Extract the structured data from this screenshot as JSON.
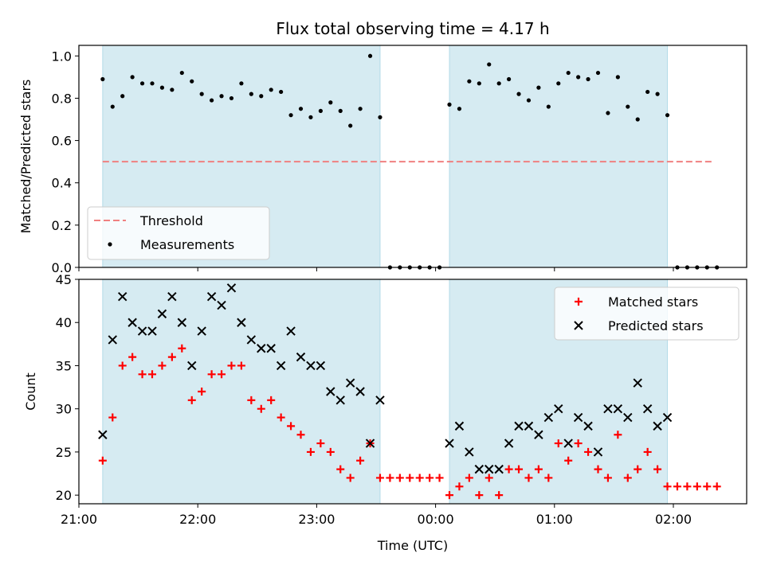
{
  "chart_data": {
    "type": "scatter",
    "title": "Flux total observing time = 4.17 h",
    "xlabel": "Time (UTC)",
    "x_ticks": [
      "21:00",
      "22:00",
      "23:00",
      "00:00",
      "01:00",
      "02:00"
    ],
    "x_range": [
      "21:00",
      "02:37"
    ],
    "shaded_intervals": [
      [
        "21:12",
        "23:32"
      ],
      [
        "00:07",
        "01:57"
      ]
    ],
    "shade_color": "#add8e6",
    "panels": [
      {
        "id": "ratio",
        "ylabel": "Matched/Predicted stars",
        "ylim": [
          0,
          1.05
        ],
        "y_ticks": [
          "0.0",
          "0.2",
          "0.4",
          "0.6",
          "0.8",
          "1.0"
        ],
        "legend_position": "lower-left",
        "threshold": {
          "name": "Threshold",
          "value": 0.5,
          "x_start": "21:12",
          "x_end": "02:20",
          "color": "#f08080"
        },
        "series": [
          {
            "name": "Measurements",
            "marker": "dot",
            "color": "#000000",
            "points": [
              [
                "21:12",
                0.89
              ],
              [
                "21:17",
                0.76
              ],
              [
                "21:22",
                0.81
              ],
              [
                "21:27",
                0.9
              ],
              [
                "21:32",
                0.87
              ],
              [
                "21:37",
                0.87
              ],
              [
                "21:42",
                0.85
              ],
              [
                "21:47",
                0.84
              ],
              [
                "21:52",
                0.92
              ],
              [
                "21:57",
                0.88
              ],
              [
                "22:02",
                0.82
              ],
              [
                "22:07",
                0.79
              ],
              [
                "22:12",
                0.81
              ],
              [
                "22:17",
                0.8
              ],
              [
                "22:22",
                0.87
              ],
              [
                "22:27",
                0.82
              ],
              [
                "22:32",
                0.81
              ],
              [
                "22:37",
                0.84
              ],
              [
                "22:42",
                0.83
              ],
              [
                "22:47",
                0.72
              ],
              [
                "22:52",
                0.75
              ],
              [
                "22:57",
                0.71
              ],
              [
                "23:02",
                0.74
              ],
              [
                "23:07",
                0.78
              ],
              [
                "23:12",
                0.74
              ],
              [
                "23:17",
                0.67
              ],
              [
                "23:22",
                0.75
              ],
              [
                "23:27",
                1.0
              ],
              [
                "23:32",
                0.71
              ],
              [
                "23:37",
                0.0
              ],
              [
                "23:42",
                0.0
              ],
              [
                "23:47",
                0.0
              ],
              [
                "23:52",
                0.0
              ],
              [
                "23:57",
                0.0
              ],
              [
                "00:02",
                0.0
              ],
              [
                "00:07",
                0.77
              ],
              [
                "00:12",
                0.75
              ],
              [
                "00:17",
                0.88
              ],
              [
                "00:22",
                0.87
              ],
              [
                "00:27",
                0.96
              ],
              [
                "00:32",
                0.87
              ],
              [
                "00:37",
                0.89
              ],
              [
                "00:42",
                0.82
              ],
              [
                "00:47",
                0.79
              ],
              [
                "00:52",
                0.85
              ],
              [
                "00:57",
                0.76
              ],
              [
                "01:02",
                0.87
              ],
              [
                "01:07",
                0.92
              ],
              [
                "01:12",
                0.9
              ],
              [
                "01:17",
                0.89
              ],
              [
                "01:22",
                0.92
              ],
              [
                "01:27",
                0.73
              ],
              [
                "01:32",
                0.9
              ],
              [
                "01:37",
                0.76
              ],
              [
                "01:42",
                0.7
              ],
              [
                "01:47",
                0.83
              ],
              [
                "01:52",
                0.82
              ],
              [
                "01:57",
                0.72
              ],
              [
                "02:02",
                0.0
              ],
              [
                "02:07",
                0.0
              ],
              [
                "02:12",
                0.0
              ],
              [
                "02:17",
                0.0
              ],
              [
                "02:22",
                0.0
              ]
            ]
          }
        ]
      },
      {
        "id": "count",
        "ylabel": "Count",
        "ylim": [
          19,
          45
        ],
        "y_ticks": [
          "20",
          "25",
          "30",
          "35",
          "40",
          "45"
        ],
        "legend_position": "upper-right",
        "series": [
          {
            "name": "Matched stars",
            "marker": "plus",
            "color": "#ff0000",
            "points": [
              [
                "21:12",
                24
              ],
              [
                "21:17",
                29
              ],
              [
                "21:22",
                35
              ],
              [
                "21:27",
                36
              ],
              [
                "21:32",
                34
              ],
              [
                "21:37",
                34
              ],
              [
                "21:42",
                35
              ],
              [
                "21:47",
                36
              ],
              [
                "21:52",
                37
              ],
              [
                "21:57",
                31
              ],
              [
                "22:02",
                32
              ],
              [
                "22:07",
                34
              ],
              [
                "22:12",
                34
              ],
              [
                "22:17",
                35
              ],
              [
                "22:22",
                35
              ],
              [
                "22:27",
                31
              ],
              [
                "22:32",
                30
              ],
              [
                "22:37",
                31
              ],
              [
                "22:42",
                29
              ],
              [
                "22:47",
                28
              ],
              [
                "22:52",
                27
              ],
              [
                "22:57",
                25
              ],
              [
                "23:02",
                26
              ],
              [
                "23:07",
                25
              ],
              [
                "23:12",
                23
              ],
              [
                "23:17",
                22
              ],
              [
                "23:22",
                24
              ],
              [
                "23:27",
                26
              ],
              [
                "23:32",
                22
              ],
              [
                "23:37",
                22
              ],
              [
                "23:42",
                22
              ],
              [
                "23:47",
                22
              ],
              [
                "23:52",
                22
              ],
              [
                "23:57",
                22
              ],
              [
                "00:02",
                22
              ],
              [
                "00:07",
                20
              ],
              [
                "00:12",
                21
              ],
              [
                "00:17",
                22
              ],
              [
                "00:22",
                20
              ],
              [
                "00:27",
                22
              ],
              [
                "00:32",
                20
              ],
              [
                "00:37",
                23
              ],
              [
                "00:42",
                23
              ],
              [
                "00:47",
                22
              ],
              [
                "00:52",
                23
              ],
              [
                "00:57",
                22
              ],
              [
                "01:02",
                26
              ],
              [
                "01:07",
                24
              ],
              [
                "01:12",
                26
              ],
              [
                "01:17",
                25
              ],
              [
                "01:22",
                23
              ],
              [
                "01:27",
                22
              ],
              [
                "01:32",
                27
              ],
              [
                "01:37",
                22
              ],
              [
                "01:42",
                23
              ],
              [
                "01:47",
                25
              ],
              [
                "01:52",
                23
              ],
              [
                "01:57",
                21
              ],
              [
                "02:02",
                21
              ],
              [
                "02:07",
                21
              ],
              [
                "02:12",
                21
              ],
              [
                "02:17",
                21
              ],
              [
                "02:22",
                21
              ]
            ]
          },
          {
            "name": "Predicted stars",
            "marker": "x",
            "color": "#000000",
            "points": [
              [
                "21:12",
                27
              ],
              [
                "21:17",
                38
              ],
              [
                "21:22",
                43
              ],
              [
                "21:27",
                40
              ],
              [
                "21:32",
                39
              ],
              [
                "21:37",
                39
              ],
              [
                "21:42",
                41
              ],
              [
                "21:47",
                43
              ],
              [
                "21:52",
                40
              ],
              [
                "21:57",
                35
              ],
              [
                "22:02",
                39
              ],
              [
                "22:07",
                43
              ],
              [
                "22:12",
                42
              ],
              [
                "22:17",
                44
              ],
              [
                "22:22",
                40
              ],
              [
                "22:27",
                38
              ],
              [
                "22:32",
                37
              ],
              [
                "22:37",
                37
              ],
              [
                "22:42",
                35
              ],
              [
                "22:47",
                39
              ],
              [
                "22:52",
                36
              ],
              [
                "22:57",
                35
              ],
              [
                "23:02",
                35
              ],
              [
                "23:07",
                32
              ],
              [
                "23:12",
                31
              ],
              [
                "23:17",
                33
              ],
              [
                "23:22",
                32
              ],
              [
                "23:27",
                26
              ],
              [
                "23:32",
                31
              ],
              [
                "00:07",
                26
              ],
              [
                "00:12",
                28
              ],
              [
                "00:17",
                25
              ],
              [
                "00:22",
                23
              ],
              [
                "00:27",
                23
              ],
              [
                "00:32",
                23
              ],
              [
                "00:37",
                26
              ],
              [
                "00:42",
                28
              ],
              [
                "00:47",
                28
              ],
              [
                "00:52",
                27
              ],
              [
                "00:57",
                29
              ],
              [
                "01:02",
                30
              ],
              [
                "01:07",
                26
              ],
              [
                "01:12",
                29
              ],
              [
                "01:17",
                28
              ],
              [
                "01:22",
                25
              ],
              [
                "01:27",
                30
              ],
              [
                "01:32",
                30
              ],
              [
                "01:37",
                29
              ],
              [
                "01:42",
                33
              ],
              [
                "01:47",
                30
              ],
              [
                "01:52",
                28
              ],
              [
                "01:57",
                29
              ]
            ]
          }
        ]
      }
    ]
  }
}
